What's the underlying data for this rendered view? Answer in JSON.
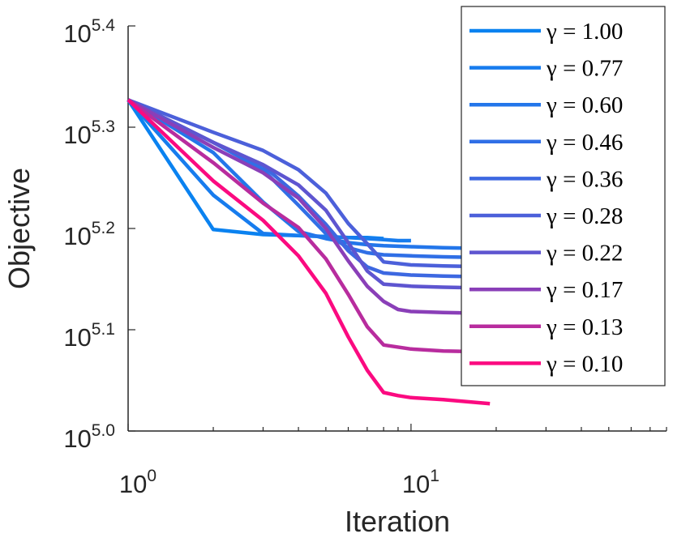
{
  "chart_data": {
    "type": "line",
    "xlabel": "Iteration",
    "ylabel": "Objective",
    "xscale": "log",
    "yscale": "log",
    "xlim": [
      1,
      80
    ],
    "ylim": [
      100000,
      251189
    ],
    "xticks": [
      {
        "value": 1,
        "base": "10",
        "exp": "0"
      },
      {
        "value": 10,
        "base": "10",
        "exp": "1"
      }
    ],
    "yticks": [
      {
        "value": 100000,
        "base": "10",
        "exp": "5.0"
      },
      {
        "value": 125893,
        "base": "10",
        "exp": "5.1"
      },
      {
        "value": 158489,
        "base": "10",
        "exp": "5.2"
      },
      {
        "value": 199526,
        "base": "10",
        "exp": "5.3"
      },
      {
        "value": 251189,
        "base": "10",
        "exp": "5.4"
      }
    ],
    "legend_position": "top-right",
    "grid": false,
    "series": [
      {
        "name": "γ = 1.00",
        "color": "#0a82f0",
        "x": [
          1,
          2,
          3,
          4,
          5,
          6,
          7,
          8
        ],
        "y": [
          5.327,
          5.199,
          5.194,
          5.193,
          5.192,
          5.191,
          5.191,
          5.19
        ]
      },
      {
        "name": "γ = 0.77",
        "color": "#177cee",
        "x": [
          1,
          2,
          3,
          4,
          5,
          6,
          7,
          8,
          9,
          10
        ],
        "y": [
          5.327,
          5.233,
          5.195,
          5.193,
          5.192,
          5.191,
          5.19,
          5.189,
          5.188,
          5.188
        ]
      },
      {
        "name": "γ = 0.60",
        "color": "#2376ea",
        "x": [
          1,
          2,
          3,
          4,
          5,
          6,
          7,
          8,
          10,
          13,
          20
        ],
        "y": [
          5.327,
          5.275,
          5.226,
          5.197,
          5.19,
          5.186,
          5.184,
          5.183,
          5.182,
          5.181,
          5.18
        ]
      },
      {
        "name": "γ = 0.46",
        "color": "#306fe6",
        "x": [
          1,
          2,
          3,
          4,
          5,
          6,
          7,
          8,
          10,
          13,
          20
        ],
        "y": [
          5.327,
          5.285,
          5.258,
          5.223,
          5.195,
          5.181,
          5.176,
          5.174,
          5.173,
          5.172,
          5.171
        ]
      },
      {
        "name": "γ = 0.36",
        "color": "#3d68e1",
        "x": [
          1,
          2,
          3,
          4,
          5,
          6,
          7,
          8,
          10,
          13,
          20
        ],
        "y": [
          5.327,
          5.285,
          5.262,
          5.232,
          5.204,
          5.178,
          5.162,
          5.156,
          5.154,
          5.153,
          5.152
        ]
      },
      {
        "name": "γ = 0.28",
        "color": "#4c60da",
        "x": [
          1,
          2,
          3,
          4,
          5,
          6,
          7,
          8,
          10,
          13,
          20
        ],
        "y": [
          5.327,
          5.295,
          5.277,
          5.258,
          5.235,
          5.205,
          5.185,
          5.167,
          5.164,
          5.163,
          5.162
        ]
      },
      {
        "name": "γ = 0.22",
        "color": "#5e55d0",
        "x": [
          1,
          2,
          3,
          4,
          5,
          6,
          7,
          8,
          10,
          13,
          20
        ],
        "y": [
          5.327,
          5.285,
          5.263,
          5.243,
          5.218,
          5.186,
          5.158,
          5.145,
          5.143,
          5.142,
          5.141
        ]
      },
      {
        "name": "γ = 0.17",
        "color": "#8a3fb8",
        "x": [
          1,
          2,
          3,
          4,
          5,
          6,
          7,
          8,
          9,
          10,
          13,
          20
        ],
        "y": [
          5.327,
          5.28,
          5.255,
          5.23,
          5.2,
          5.168,
          5.143,
          5.128,
          5.12,
          5.118,
          5.117,
          5.116
        ]
      },
      {
        "name": "γ = 0.13",
        "color": "#b82c9e",
        "x": [
          1,
          2,
          3,
          4,
          5,
          6,
          7,
          8,
          10,
          13,
          20
        ],
        "y": [
          5.327,
          5.265,
          5.225,
          5.201,
          5.17,
          5.135,
          5.103,
          5.085,
          5.081,
          5.079,
          5.078
        ]
      },
      {
        "name": "γ = 0.10",
        "color": "#fb0a80",
        "x": [
          1,
          2,
          3,
          4,
          5,
          6,
          7,
          8,
          9,
          10,
          13,
          19
        ],
        "y": [
          5.327,
          5.247,
          5.208,
          5.173,
          5.136,
          5.093,
          5.06,
          5.038,
          5.035,
          5.033,
          5.031,
          5.027
        ]
      }
    ]
  }
}
